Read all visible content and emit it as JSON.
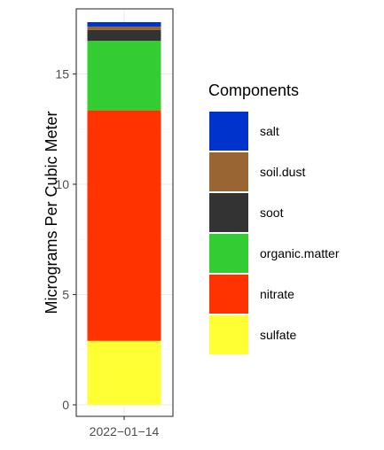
{
  "chart_data": {
    "type": "bar",
    "stacked": true,
    "categories": [
      "2022−01−14"
    ],
    "ylabel": "Micrograms Per Cubic Meter",
    "xlabel": "",
    "ylim": [
      0,
      17.4
    ],
    "yticks": [
      0,
      5,
      10,
      15
    ],
    "grid": true,
    "legend": {
      "title": "Components",
      "placement": "right"
    },
    "series": [
      {
        "name": "sulfate",
        "values": [
          2.9
        ],
        "color": "#FFFF33"
      },
      {
        "name": "nitrate",
        "values": [
          10.45
        ],
        "color": "#FF3300"
      },
      {
        "name": "organic.matter",
        "values": [
          3.15
        ],
        "color": "#33CC33"
      },
      {
        "name": "soot",
        "values": [
          0.5
        ],
        "color": "#333333"
      },
      {
        "name": "soil.dust",
        "values": [
          0.15
        ],
        "color": "#996633"
      },
      {
        "name": "salt",
        "values": [
          0.2
        ],
        "color": "#0033CC"
      }
    ],
    "legend_order": [
      "salt",
      "soil.dust",
      "soot",
      "organic.matter",
      "nitrate",
      "sulfate"
    ]
  }
}
